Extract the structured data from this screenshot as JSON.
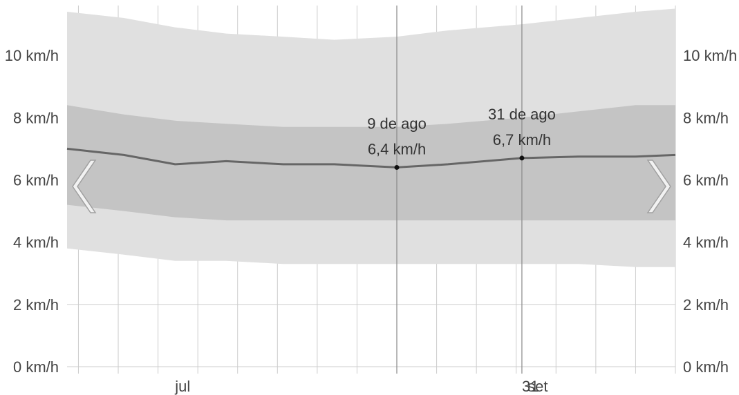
{
  "chart_data": {
    "type": "area",
    "title": "",
    "xlabel": "",
    "ylabel": "",
    "x_range": [
      "2024-06-12",
      "2024-09-27"
    ],
    "x_ticks": [
      {
        "date": "2024-07-01",
        "label": "jul"
      },
      {
        "date": "2024-08-31",
        "label": "31"
      },
      {
        "date": "2024-09-01",
        "label": "set"
      }
    ],
    "ylim": [
      0,
      11.6
    ],
    "y_ticks": [
      {
        "value": 0,
        "label": "0 km/h"
      },
      {
        "value": 2,
        "label": "2 km/h"
      },
      {
        "value": 4,
        "label": "4 km/h"
      },
      {
        "value": 6,
        "label": "6 km/h"
      },
      {
        "value": 8,
        "label": "8 km/h"
      },
      {
        "value": 10,
        "label": "10 km/h"
      }
    ],
    "grid": true,
    "colors": {
      "outer_band": "#e0e0e0",
      "inner_band": "#c4c4c4",
      "median_line": "#666666",
      "grid": "#cccccc",
      "cursor_line": "#888888"
    },
    "x": [
      "2024-06-12",
      "2024-06-22",
      "2024-07-01",
      "2024-07-10",
      "2024-07-20",
      "2024-07-29",
      "2024-08-09",
      "2024-08-18",
      "2024-08-31",
      "2024-09-10",
      "2024-09-20",
      "2024-09-27"
    ],
    "series": [
      {
        "role": "p90",
        "values": [
          11.4,
          11.2,
          10.9,
          10.7,
          10.6,
          10.5,
          10.6,
          10.8,
          11.0,
          11.2,
          11.4,
          11.5
        ]
      },
      {
        "role": "p75",
        "values": [
          8.4,
          8.1,
          7.9,
          7.8,
          7.7,
          7.7,
          7.7,
          7.8,
          8.0,
          8.2,
          8.4,
          8.4
        ]
      },
      {
        "role": "median",
        "values": [
          7.0,
          6.8,
          6.5,
          6.6,
          6.5,
          6.5,
          6.4,
          6.5,
          6.7,
          6.75,
          6.75,
          6.8
        ]
      },
      {
        "role": "p25",
        "values": [
          5.2,
          5.0,
          4.8,
          4.7,
          4.7,
          4.7,
          4.7,
          4.7,
          4.7,
          4.7,
          4.7,
          4.7
        ]
      },
      {
        "role": "p10",
        "values": [
          3.8,
          3.6,
          3.4,
          3.4,
          3.3,
          3.3,
          3.3,
          3.3,
          3.3,
          3.3,
          3.2,
          3.2
        ]
      }
    ],
    "annotations": [
      {
        "date": "2024-08-09",
        "value": 6.4,
        "date_label": "9 de ago",
        "value_label": "6,4 km/h"
      },
      {
        "date": "2024-08-31",
        "value": 6.7,
        "date_label": "31 de ago",
        "value_label": "6,7 km/h"
      }
    ],
    "nav": {
      "prev_icon": "chevron-left-icon",
      "next_icon": "chevron-right-icon"
    }
  }
}
